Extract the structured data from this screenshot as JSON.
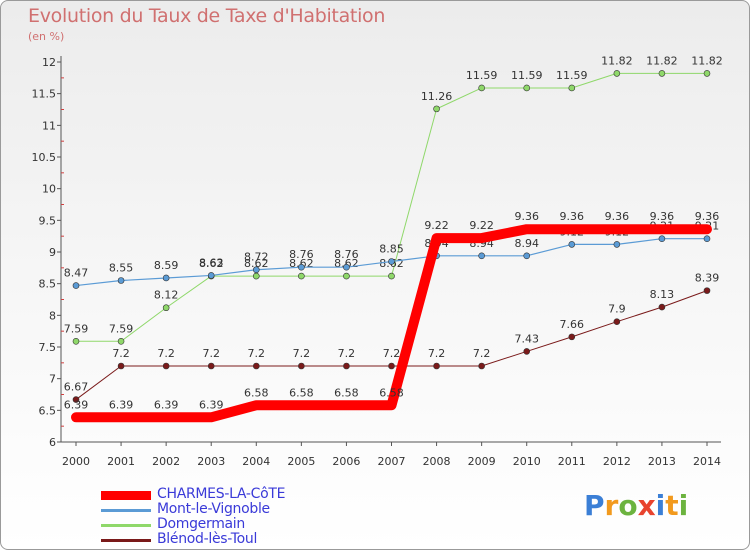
{
  "header": {
    "title": "Evolution du Taux de Taxe d'Habitation",
    "subtitle": "(en %)"
  },
  "chart_data": {
    "type": "line",
    "title": "Evolution du Taux de Taxe d'Habitation",
    "ylabel": "(en %)",
    "xlabel": "",
    "x": [
      "2000",
      "2001",
      "2002",
      "2003",
      "2004",
      "2005",
      "2006",
      "2007",
      "2008",
      "2009",
      "2010",
      "2011",
      "2012",
      "2013",
      "2014"
    ],
    "ylim": [
      6,
      12
    ],
    "yticks": [
      "6",
      "6.5",
      "7",
      "7.5",
      "8",
      "8.5",
      "9",
      "9.5",
      "10",
      "10.5",
      "11",
      "11.5",
      "12"
    ],
    "grid": false,
    "legend_position": "bottom-left",
    "series": [
      {
        "name": "Blénod-lès-Toul",
        "color": "#7a1a1a",
        "values": [
          6.67,
          7.2,
          7.2,
          7.2,
          7.2,
          7.2,
          7.2,
          7.2,
          7.2,
          7.2,
          7.43,
          7.66,
          7.9,
          8.13,
          8.39
        ]
      },
      {
        "name": "Domgermain",
        "color": "#8fd86a",
        "values": [
          7.59,
          7.59,
          8.12,
          8.62,
          8.62,
          8.62,
          8.62,
          8.62,
          11.26,
          11.59,
          11.59,
          11.59,
          11.82,
          11.82,
          11.82
        ]
      },
      {
        "name": "Mont-le-Vignoble",
        "color": "#5b9bd5",
        "values": [
          8.47,
          8.55,
          8.59,
          8.63,
          8.72,
          8.76,
          8.76,
          8.85,
          8.94,
          8.94,
          8.94,
          9.12,
          9.12,
          9.21,
          9.21
        ]
      },
      {
        "name": "CHARMES-LA-CôTE",
        "color": "#ff0000",
        "values": [
          6.39,
          6.39,
          6.39,
          6.39,
          6.58,
          6.58,
          6.58,
          6.58,
          9.22,
          9.22,
          9.36,
          9.36,
          9.36,
          9.36,
          9.36
        ]
      }
    ]
  },
  "legend": {
    "items": [
      {
        "label": "CHARMES-LA-CôTE",
        "color": "#ff0000"
      },
      {
        "label": "Mont-le-Vignoble",
        "color": "#5b9bd5"
      },
      {
        "label": "Domgermain",
        "color": "#8fd86a"
      },
      {
        "label": "Blénod-lès-Toul",
        "color": "#7a1a1a"
      }
    ]
  },
  "logo": {
    "text": "Proxiti",
    "colors": [
      "#3b7fd6",
      "#f29a1e",
      "#6cb33f",
      "#e8432e",
      "#3b7fd6",
      "#f29a1e",
      "#6cb33f"
    ]
  }
}
